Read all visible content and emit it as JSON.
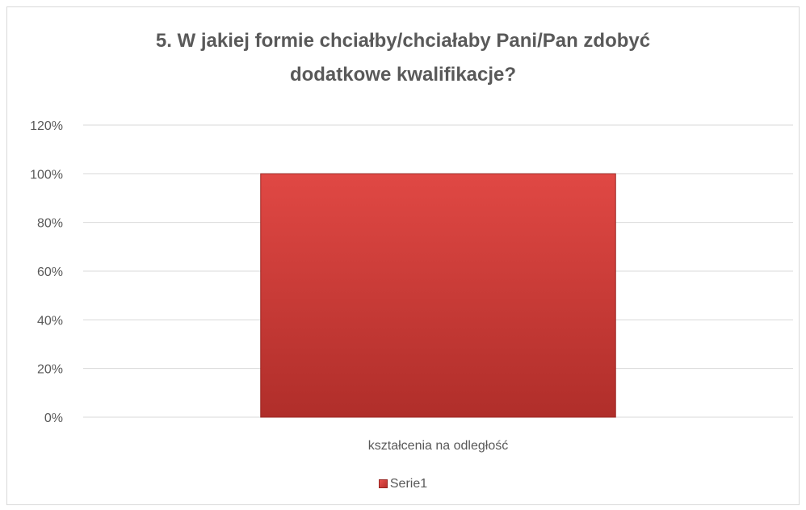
{
  "chart_data": {
    "type": "bar",
    "title_lines": [
      "5. W jakiej formie chciałby/chciałaby Pani/Pan zdobyć",
      "dodatkowe kwalifikacje?"
    ],
    "categories": [
      "kształcenia na odległość"
    ],
    "series": [
      {
        "name": "Serie1",
        "values": [
          1.0
        ]
      }
    ],
    "y_ticks": [
      "0%",
      "20%",
      "40%",
      "60%",
      "80%",
      "100%",
      "120%"
    ],
    "ylim": [
      0,
      1.2
    ],
    "y_format": "percent",
    "grid": true,
    "legend_position": "bottom",
    "colors": {
      "bar_top": "#e04844",
      "bar_bottom": "#b02e2a",
      "bar_edge": "#9a2622",
      "grid": "#d9d9d9",
      "text": "#595959"
    }
  }
}
